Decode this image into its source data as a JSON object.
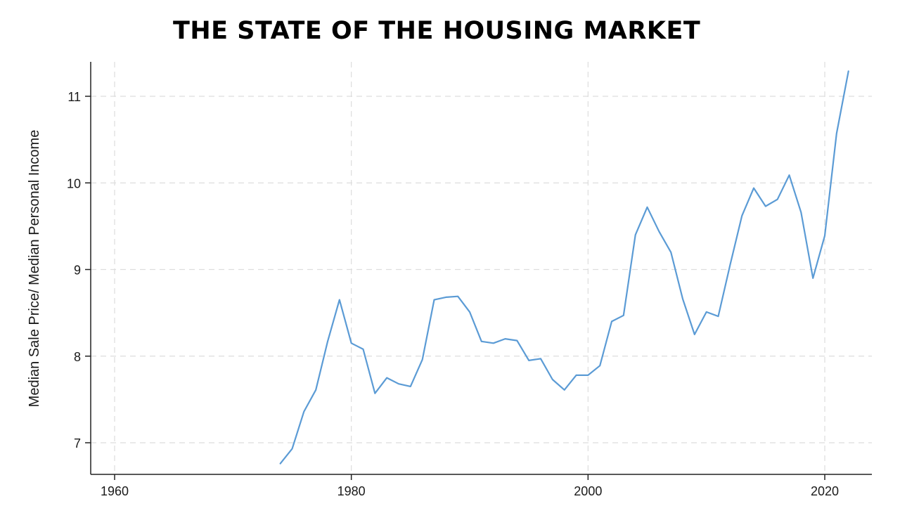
{
  "chart_data": {
    "type": "line",
    "title": "THE STATE OF THE HOUSING MARKET",
    "xlabel": "",
    "ylabel": "Median Sale Price/ Median Personal Income",
    "xlim": [
      1958,
      2024
    ],
    "ylim": [
      6.7,
      11.4
    ],
    "x_ticks": [
      1960,
      1980,
      2000,
      2020
    ],
    "y_ticks": [
      7,
      8,
      9,
      10,
      11
    ],
    "grid": true,
    "legend": "none",
    "colors": {
      "line": "#5b9bd5",
      "grid": "#dddddd",
      "axis": "#222222"
    },
    "series": [
      {
        "x": [
          1974,
          1975,
          1976,
          1977,
          1978,
          1979,
          1980,
          1981,
          1982,
          1983,
          1984,
          1985,
          1986,
          1987,
          1988,
          1989,
          1990,
          1991,
          1992,
          1993,
          1994,
          1995,
          1996,
          1997,
          1998,
          1999,
          2000,
          2001,
          2002,
          2003,
          2004,
          2005,
          2006,
          2007,
          2008,
          2009,
          2010,
          2011,
          2012,
          2013,
          2014,
          2015,
          2016,
          2017,
          2018,
          2019,
          2020,
          2021,
          2022
        ],
        "values": [
          6.76,
          6.93,
          7.36,
          7.61,
          8.17,
          8.65,
          8.15,
          8.08,
          7.57,
          7.75,
          7.68,
          7.65,
          7.96,
          8.65,
          8.68,
          8.69,
          8.51,
          8.17,
          8.15,
          8.2,
          8.18,
          7.95,
          7.97,
          7.73,
          7.61,
          7.78,
          7.78,
          7.89,
          8.4,
          8.47,
          9.4,
          9.72,
          9.44,
          9.2,
          8.66,
          8.25,
          8.51,
          8.46,
          9.05,
          9.62,
          9.94,
          9.73,
          9.81,
          10.09,
          9.66,
          8.9,
          9.39,
          10.57,
          11.29
        ]
      }
    ]
  }
}
